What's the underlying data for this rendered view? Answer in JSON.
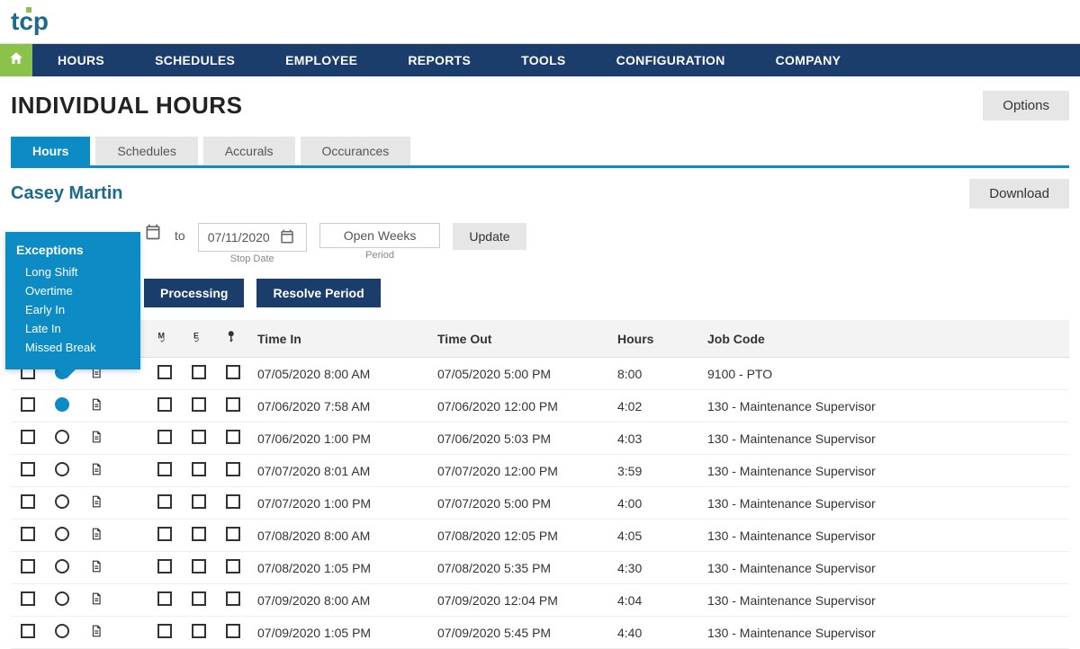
{
  "logo_text": "tcp",
  "main_nav": [
    "HOURS",
    "SCHEDULES",
    "EMPLOYEE",
    "REPORTS",
    "TOOLS",
    "CONFIGURATION",
    "COMPANY"
  ],
  "page_title": "INDIVIDUAL HOURS",
  "options_btn": "Options",
  "sub_tabs": [
    "Hours",
    "Schedules",
    "Accurals",
    "Occurances"
  ],
  "active_sub_tab": 0,
  "employee_name": "Casey Martin",
  "download_btn": "Download",
  "to_label": "to",
  "stop_date": "07/11/2020",
  "stop_date_label": "Stop Date",
  "period": "Open Weeks",
  "period_label": "Period",
  "update_btn": "Update",
  "processing_btn": "Processing",
  "resolve_btn": "Resolve Period",
  "exceptions": {
    "title": "Exceptions",
    "items": [
      "Long Shift",
      "Overtime",
      "Early In",
      "Late In",
      "Missed Break"
    ]
  },
  "columns": {
    "time_in": "Time In",
    "time_out": "Time Out",
    "hours": "Hours",
    "job_code": "Job Code"
  },
  "rows": [
    {
      "filled": true,
      "time_in": "07/05/2020 8:00 AM",
      "time_out": "07/05/2020  5:00 PM",
      "hours": "8:00",
      "job_code": "9100 - PTO"
    },
    {
      "filled": true,
      "time_in": "07/06/2020 7:58 AM",
      "time_out": "07/06/2020 12:00 PM",
      "hours": "4:02",
      "job_code": "130 - Maintenance Supervisor"
    },
    {
      "filled": false,
      "time_in": "07/06/2020 1:00 PM",
      "time_out": "07/06/2020  5:03 PM",
      "hours": "4:03",
      "job_code": "130 - Maintenance Supervisor"
    },
    {
      "filled": false,
      "time_in": "07/07/2020 8:01 AM",
      "time_out": "07/07/2020 12:00 PM",
      "hours": "3:59",
      "job_code": "130 - Maintenance Supervisor"
    },
    {
      "filled": false,
      "time_in": "07/07/2020 1:00 PM",
      "time_out": "07/07/2020  5:00 PM",
      "hours": "4:00",
      "job_code": "130 - Maintenance Supervisor"
    },
    {
      "filled": false,
      "time_in": "07/08/2020 8:00 AM",
      "time_out": "07/08/2020 12:05 PM",
      "hours": "4:05",
      "job_code": "130 - Maintenance Supervisor"
    },
    {
      "filled": false,
      "time_in": "07/08/2020 1:05 PM",
      "time_out": "07/08/2020  5:35 PM",
      "hours": "4:30",
      "job_code": "130 - Maintenance Supervisor"
    },
    {
      "filled": false,
      "time_in": "07/09/2020 8:00 AM",
      "time_out": "07/09/2020 12:04 PM",
      "hours": "4:04",
      "job_code": "130 - Maintenance Supervisor"
    },
    {
      "filled": false,
      "time_in": "07/09/2020 1:05 PM",
      "time_out": "07/09/2020  5:45 PM",
      "hours": "4:40",
      "job_code": "130 - Maintenance Supervisor"
    }
  ],
  "colors": {
    "nav_bg": "#1a3d6b",
    "home_bg": "#8bc34a",
    "tab_active": "#0d8bc4",
    "accent": "#1a6b8c"
  }
}
